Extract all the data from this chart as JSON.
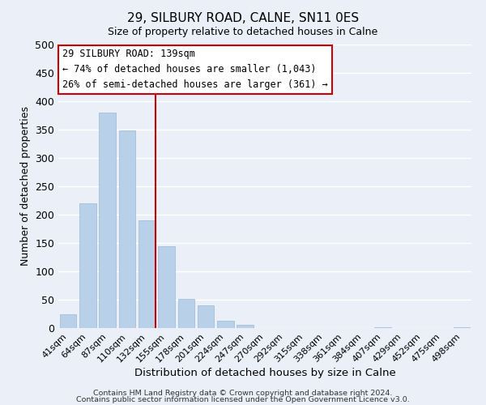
{
  "title": "29, SILBURY ROAD, CALNE, SN11 0ES",
  "subtitle": "Size of property relative to detached houses in Calne",
  "xlabel": "Distribution of detached houses by size in Calne",
  "ylabel": "Number of detached properties",
  "bar_labels": [
    "41sqm",
    "64sqm",
    "87sqm",
    "110sqm",
    "132sqm",
    "155sqm",
    "178sqm",
    "201sqm",
    "224sqm",
    "247sqm",
    "270sqm",
    "292sqm",
    "315sqm",
    "338sqm",
    "361sqm",
    "384sqm",
    "407sqm",
    "429sqm",
    "452sqm",
    "475sqm",
    "498sqm"
  ],
  "bar_values": [
    25,
    220,
    380,
    348,
    190,
    145,
    52,
    40,
    13,
    6,
    0,
    0,
    0,
    0,
    0,
    0,
    2,
    0,
    0,
    0,
    2
  ],
  "bar_color": "#b8d0e8",
  "bar_edge_color": "#9ab8d8",
  "reference_line_color": "#cc0000",
  "ylim": [
    0,
    500
  ],
  "yticks": [
    0,
    50,
    100,
    150,
    200,
    250,
    300,
    350,
    400,
    450,
    500
  ],
  "annotation_title": "29 SILBURY ROAD: 139sqm",
  "annotation_line1": "← 74% of detached houses are smaller (1,043)",
  "annotation_line2": "26% of semi-detached houses are larger (361) →",
  "annotation_box_color": "#ffffff",
  "annotation_box_edge": "#cc0000",
  "footnote1": "Contains HM Land Registry data © Crown copyright and database right 2024.",
  "footnote2": "Contains public sector information licensed under the Open Government Licence v3.0.",
  "background_color": "#eaeff8",
  "grid_color": "#ffffff"
}
